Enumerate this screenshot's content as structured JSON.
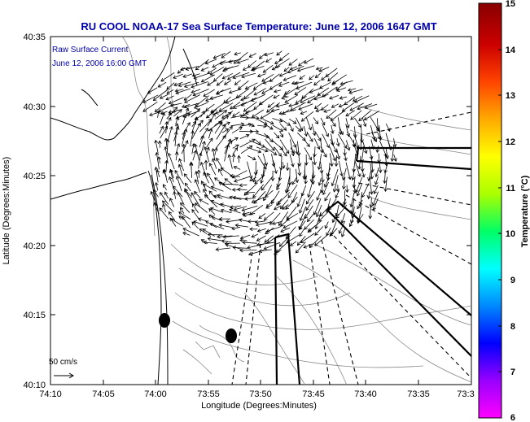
{
  "title": "RU COOL  NOAA-17  Sea Surface Temperature:  June 12, 2006 1647 GMT",
  "annotation": {
    "line1": "Raw Surface Current",
    "line2": "June 12, 2006 16:00 GMT"
  },
  "axes": {
    "xlabel": "Longitude (Degrees:Minutes)",
    "ylabel": "Latitude (Degrees:Minutes)",
    "xticks": [
      "74:10",
      "74:05",
      "74:00",
      "73:55",
      "73:50",
      "73:45",
      "73:40",
      "73:35",
      "73:3"
    ],
    "yticks": [
      "40:35",
      "40:30",
      "40:25",
      "40:20",
      "40:15",
      "40:10"
    ]
  },
  "scale_label": "50 cm/s",
  "colorbar": {
    "label": "Temperature (°C)",
    "ticks": [
      "15",
      "14",
      "13",
      "12",
      "11",
      "10",
      "9",
      "8",
      "7",
      "6"
    ],
    "colors": [
      "#ff00ff",
      "#9900ff",
      "#0000ff",
      "#0088ff",
      "#00ffff",
      "#00ff66",
      "#aaff00",
      "#ffff00",
      "#ffaa00",
      "#ff4400",
      "#cc0000",
      "#880000"
    ]
  },
  "colors": {
    "title": "#0000aa",
    "annotation": "#0000aa",
    "land_contour": "#000000",
    "bathymetry": "#888888"
  }
}
